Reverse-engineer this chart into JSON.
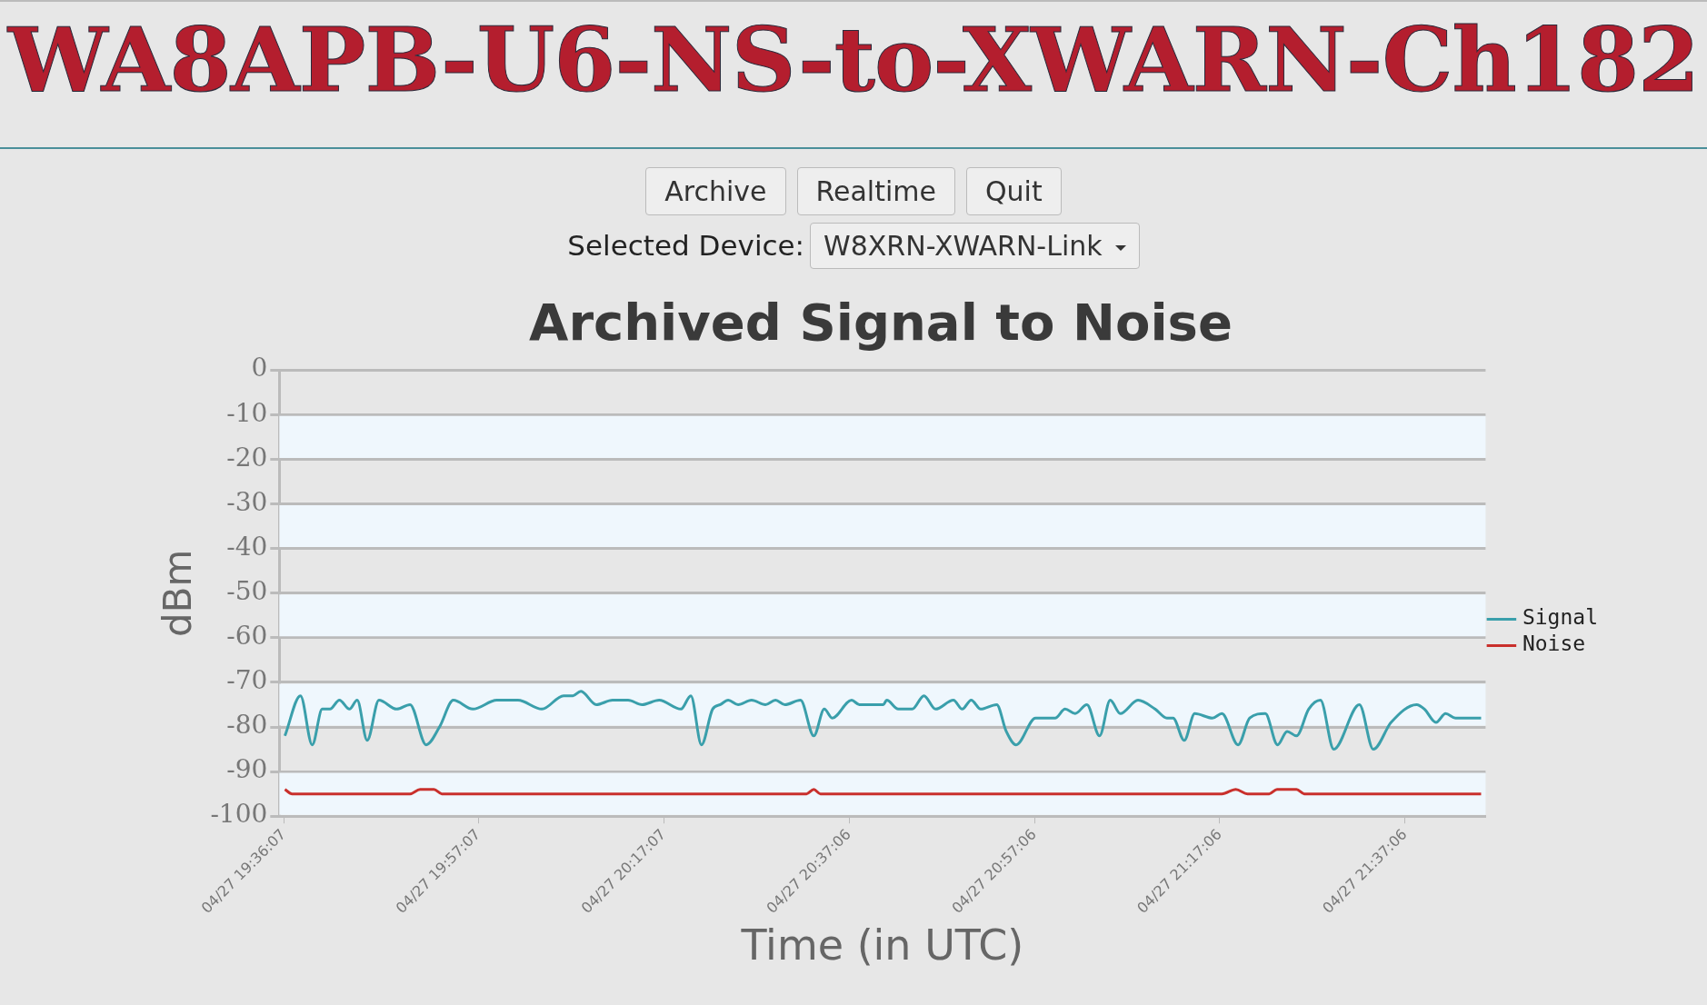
{
  "chart_data": {
    "type": "line",
    "title": "Archived Signal to Noise",
    "xlabel": "Time (in UTC)",
    "ylabel": "dBm",
    "annotations": [
      "WA8APB-U6-NS-to-XWARN-Ch182",
      "Archive",
      "Realtime",
      "Quit",
      "Selected Device:",
      "W8XRN-XWARN-Link"
    ],
    "xlim": [
      "--04-27T19:35:38",
      "--04-27T21:45:47"
    ],
    "xticks": [
      {
        "value": "--04-27T19:36:07",
        "label": "04/27 19:36:07"
      },
      {
        "value": "--04-27T19:57:07",
        "label": "04/27 19:57:07"
      },
      {
        "value": "--04-27T20:17:07",
        "label": "04/27 20:17:07"
      },
      {
        "value": "--04-27T20:37:06",
        "label": "04/27 20:37:06"
      },
      {
        "value": "--04-27T20:57:06",
        "label": "04/27 20:57:06"
      },
      {
        "value": "--04-27T21:17:06",
        "label": "04/27 21:17:06"
      },
      {
        "value": "--04-27T21:37:06",
        "label": "04/27 21:37:06"
      }
    ],
    "ylim": [
      -100,
      0
    ],
    "yticks": [
      0,
      -10,
      -20,
      -30,
      -40,
      -50,
      -60,
      -70,
      -80,
      -90,
      -100
    ],
    "grid": "y",
    "legend": "right",
    "marker": "none",
    "line_style": "solid",
    "bands": [
      {
        "axis": "y",
        "from": -20,
        "to": -10,
        "color": "#eff7fd"
      },
      {
        "axis": "y",
        "from": -40,
        "to": -30,
        "color": "#eff7fd"
      },
      {
        "axis": "y",
        "from": -60,
        "to": -50,
        "color": "#eff7fd"
      },
      {
        "axis": "y",
        "from": -80,
        "to": -70,
        "color": "#eff7fd"
      },
      {
        "axis": "y",
        "from": -100,
        "to": -90,
        "color": "#eff7fd"
      }
    ],
    "series": [
      {
        "name": "Signal",
        "color": "#3a9fab",
        "x": [
          "--04-27T19:36:14",
          "--04-27T19:37:55",
          "--04-27T19:39:11",
          "--04-27T19:40:16",
          "--04-27T19:41:06",
          "--04-27T19:42:07",
          "--04-27T19:43:12",
          "--04-27T19:44:02",
          "--04-27T19:45:07",
          "--04-27T19:46:23",
          "--04-27T19:48:18",
          "--04-27T19:49:44",
          "--04-27T19:51:29",
          "--04-27T19:52:55",
          "--04-27T19:54:25",
          "--04-27T19:56:31",
          "--04-27T19:59:06",
          "--04-27T20:01:23",
          "--04-27T20:03:58",
          "--04-27T20:06:18",
          "--04-27T20:07:19",
          "--04-27T20:08:10",
          "--04-27T20:09:50",
          "--04-27T20:11:35",
          "--04-27T20:13:16",
          "--04-27T20:14:46",
          "--04-27T20:16:37",
          "--04-27T20:18:58",
          "--04-27T20:20:02",
          "--04-27T20:21:11",
          "--04-27T20:22:23",
          "--04-27T20:23:13",
          "--04-27T20:24:04",
          "--04-27T20:25:08",
          "--04-27T20:26:35",
          "--04-27T20:28:05",
          "--04-27T20:29:10",
          "--04-27T20:30:11",
          "--04-27T20:31:52",
          "--04-27T20:33:18",
          "--04-27T20:34:26",
          "--04-27T20:35:17",
          "--04-27T20:37:23",
          "--04-27T20:38:13",
          "--04-27T20:40:48",
          "--04-27T20:41:10",
          "--04-27T20:42:25",
          "--04-27T20:43:55",
          "--04-27T20:45:11",
          "--04-27T20:46:26",
          "--04-27T20:48:22",
          "--04-27T20:49:19",
          "--04-27T20:50:17",
          "--04-27T20:51:18",
          "--04-27T20:53:02",
          "--04-27T20:54:04",
          "--04-27T20:55:08",
          "--04-27T20:57:14",
          "--04-27T20:59:20",
          "--04-27T21:00:25",
          "--04-27T21:01:30",
          "--04-27T21:02:46",
          "--04-27T21:04:08",
          "--04-27T21:05:17",
          "--04-27T21:06:22",
          "--04-27T21:08:17",
          "--04-27T21:10:08",
          "--04-27T21:11:24",
          "--04-27T21:12:04",
          "--04-27T21:13:16",
          "--04-27T21:14:24",
          "--04-27T21:16:19",
          "--04-27T21:17:20",
          "--04-27T21:19:05",
          "--04-27T21:20:20",
          "--04-27T21:22:01",
          "--04-27T21:23:20",
          "--04-27T21:24:22",
          "--04-27T21:25:23",
          "--04-27T21:26:42",
          "--04-27T21:27:58",
          "--04-27T21:29:24",
          "--04-27T21:32:10",
          "--04-27T21:33:40",
          "--04-27T21:35:35",
          "--04-27T21:38:20",
          "--04-27T21:39:11",
          "--04-27T21:40:26",
          "--04-27T21:41:28",
          "--04-27T21:42:32",
          "--04-27T21:44:02",
          "--04-27T21:45:18"
        ],
        "values": [
          -82,
          -73,
          -84,
          -76,
          -76,
          -74,
          -76,
          -74,
          -83,
          -74,
          -76,
          -75,
          -84,
          -80,
          -74,
          -76,
          -74,
          -74,
          -76,
          -73,
          -73,
          -72,
          -75,
          -74,
          -74,
          -75,
          -74,
          -76,
          -73,
          -84,
          -76,
          -75,
          -74,
          -75,
          -74,
          -75,
          -74,
          -75,
          -74,
          -82,
          -76,
          -78,
          -74,
          -75,
          -75,
          -74,
          -76,
          -76,
          -73,
          -76,
          -74,
          -76,
          -74,
          -76,
          -75,
          -81,
          -84,
          -78,
          -78,
          -76,
          -77,
          -75,
          -82,
          -74,
          -77,
          -74,
          -76,
          -78,
          -78,
          -83,
          -77,
          -78,
          -77,
          -84,
          -78,
          -77,
          -84,
          -81,
          -82,
          -76,
          -74,
          -85,
          -75,
          -85,
          -79,
          -75,
          -76,
          -79,
          -77,
          -78,
          -78,
          -78
        ]
      },
      {
        "name": "Noise",
        "color": "#c9302c",
        "x": [
          "--04-27T19:36:14",
          "--04-27T19:37:01",
          "--04-27T19:49:44",
          "--04-27T19:50:49",
          "--04-27T19:52:19",
          "--04-27T19:53:10",
          "--04-27T20:32:31",
          "--04-27T20:33:18",
          "--04-27T20:34:01",
          "--04-27T21:17:20",
          "--04-27T21:18:50",
          "--04-27T21:20:06",
          "--04-27T21:22:26",
          "--04-27T21:23:17",
          "--04-27T21:25:23",
          "--04-27T21:26:13",
          "--04-27T21:45:18"
        ],
        "values": [
          -94,
          -95,
          -95,
          -94,
          -94,
          -95,
          -95,
          -94,
          -95,
          -95,
          -94,
          -95,
          -95,
          -94,
          -94,
          -95,
          -95
        ]
      }
    ]
  }
}
